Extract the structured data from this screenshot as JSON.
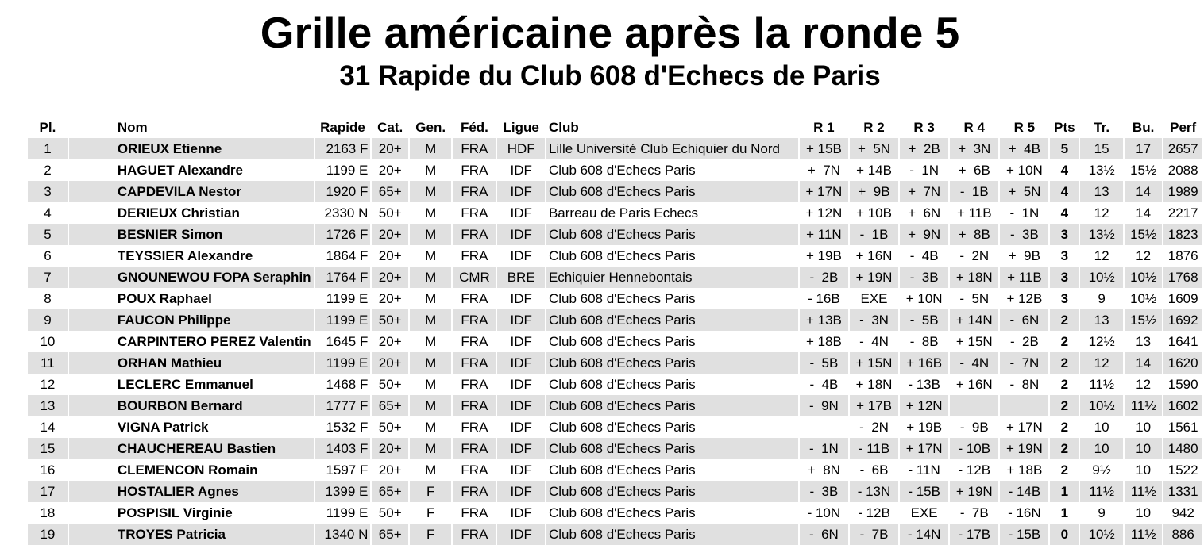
{
  "title": "Grille américaine après la ronde 5",
  "subtitle": "31 Rapide du Club 608 d'Echecs de Paris",
  "columns": [
    "Pl.",
    "Nom",
    "Rapide",
    "Cat.",
    "Gen.",
    "Féd.",
    "Ligue",
    "Club",
    "R 1",
    "R 2",
    "R 3",
    "R 4",
    "R 5",
    "Pts",
    "Tr.",
    "Bu.",
    "Perf"
  ],
  "rows": [
    [
      "1",
      "ORIEUX Etienne",
      "2163 F",
      "20+",
      "M",
      "FRA",
      "HDF",
      "Lille Université Club Echiquier du Nord",
      "+ 15B",
      "+  5N",
      "+  2B",
      "+  3N",
      "+  4B",
      "5",
      "15",
      "17",
      "2657"
    ],
    [
      "2",
      "HAGUET Alexandre",
      "1199 E",
      "20+",
      "M",
      "FRA",
      "IDF",
      "Club 608 d'Echecs Paris",
      "+  7N",
      "+ 14B",
      "-  1N",
      "+  6B",
      "+ 10N",
      "4",
      "13½",
      "15½",
      "2088"
    ],
    [
      "3",
      "CAPDEVILA Nestor",
      "1920 F",
      "65+",
      "M",
      "FRA",
      "IDF",
      "Club 608 d'Echecs Paris",
      "+ 17N",
      "+  9B",
      "+  7N",
      "-  1B",
      "+  5N",
      "4",
      "13",
      "14",
      "1989"
    ],
    [
      "4",
      "DERIEUX Christian",
      "2330 N",
      "50+",
      "M",
      "FRA",
      "IDF",
      "Barreau de Paris Echecs",
      "+ 12N",
      "+ 10B",
      "+  6N",
      "+ 11B",
      "-  1N",
      "4",
      "12",
      "14",
      "2217"
    ],
    [
      "5",
      "BESNIER Simon",
      "1726 F",
      "20+",
      "M",
      "FRA",
      "IDF",
      "Club 608 d'Echecs Paris",
      "+ 11N",
      "-  1B",
      "+  9N",
      "+  8B",
      "-  3B",
      "3",
      "13½",
      "15½",
      "1823"
    ],
    [
      "6",
      "TEYSSIER Alexandre",
      "1864 F",
      "20+",
      "M",
      "FRA",
      "IDF",
      "Club 608 d'Echecs Paris",
      "+ 19B",
      "+ 16N",
      "-  4B",
      "-  2N",
      "+  9B",
      "3",
      "12",
      "12",
      "1876"
    ],
    [
      "7",
      "GNOUNEWOU FOPA Seraphin",
      "1764 F",
      "20+",
      "M",
      "CMR",
      "BRE",
      "Echiquier Hennebontais",
      "-  2B",
      "+ 19N",
      "-  3B",
      "+ 18N",
      "+ 11B",
      "3",
      "10½",
      "10½",
      "1768"
    ],
    [
      "8",
      "POUX Raphael",
      "1199 E",
      "20+",
      "M",
      "FRA",
      "IDF",
      "Club 608 d'Echecs Paris",
      "- 16B",
      "EXE",
      "+ 10N",
      "-  5N",
      "+ 12B",
      "3",
      "9",
      "10½",
      "1609"
    ],
    [
      "9",
      "FAUCON Philippe",
      "1199 E",
      "50+",
      "M",
      "FRA",
      "IDF",
      "Club 608 d'Echecs Paris",
      "+ 13B",
      "-  3N",
      "-  5B",
      "+ 14N",
      "-  6N",
      "2",
      "13",
      "15½",
      "1692"
    ],
    [
      "10",
      "CARPINTERO PEREZ Valentin",
      "1645 F",
      "20+",
      "M",
      "FRA",
      "IDF",
      "Club 608 d'Echecs Paris",
      "+ 18B",
      "-  4N",
      "-  8B",
      "+ 15N",
      "-  2B",
      "2",
      "12½",
      "13",
      "1641"
    ],
    [
      "11",
      "ORHAN Mathieu",
      "1199 E",
      "20+",
      "M",
      "FRA",
      "IDF",
      "Club 608 d'Echecs Paris",
      "-  5B",
      "+ 15N",
      "+ 16B",
      "-  4N",
      "-  7N",
      "2",
      "12",
      "14",
      "1620"
    ],
    [
      "12",
      "LECLERC Emmanuel",
      "1468 F",
      "50+",
      "M",
      "FRA",
      "IDF",
      "Club 608 d'Echecs Paris",
      "-  4B",
      "+ 18N",
      "- 13B",
      "+ 16N",
      "-  8N",
      "2",
      "11½",
      "12",
      "1590"
    ],
    [
      "13",
      "BOURBON Bernard",
      "1777 F",
      "65+",
      "M",
      "FRA",
      "IDF",
      "Club 608 d'Echecs Paris",
      "-  9N",
      "+ 17B",
      "+ 12N",
      "",
      "",
      "2",
      "10½",
      "11½",
      "1602"
    ],
    [
      "14",
      "VIGNA Patrick",
      "1532 F",
      "50+",
      "M",
      "FRA",
      "IDF",
      "Club 608 d'Echecs Paris",
      "",
      "-  2N",
      "+ 19B",
      "-  9B",
      "+ 17N",
      "2",
      "10",
      "10",
      "1561"
    ],
    [
      "15",
      "CHAUCHEREAU Bastien",
      "1403 F",
      "20+",
      "M",
      "FRA",
      "IDF",
      "Club 608 d'Echecs Paris",
      "-  1N",
      "- 11B",
      "+ 17N",
      "- 10B",
      "+ 19N",
      "2",
      "10",
      "10",
      "1480"
    ],
    [
      "16",
      "CLEMENCON Romain",
      "1597 F",
      "20+",
      "M",
      "FRA",
      "IDF",
      "Club 608 d'Echecs Paris",
      "+  8N",
      "-  6B",
      "- 11N",
      "- 12B",
      "+ 18B",
      "2",
      "9½",
      "10",
      "1522"
    ],
    [
      "17",
      "HOSTALIER Agnes",
      "1399 E",
      "65+",
      "F",
      "FRA",
      "IDF",
      "Club 608 d'Echecs Paris",
      "-  3B",
      "- 13N",
      "- 15B",
      "+ 19N",
      "- 14B",
      "1",
      "11½",
      "11½",
      "1331"
    ],
    [
      "18",
      "POSPISIL Virginie",
      "1199 E",
      "50+",
      "F",
      "FRA",
      "IDF",
      "Club 608 d'Echecs Paris",
      "- 10N",
      "- 12B",
      "EXE",
      "-  7B",
      "- 16N",
      "1",
      "9",
      "10",
      "942"
    ],
    [
      "19",
      "TROYES Patricia",
      "1340 N",
      "65+",
      "F",
      "FRA",
      "IDF",
      "Club 608 d'Echecs Paris",
      "-  6N",
      "-  7B",
      "- 14N",
      "- 17B",
      "- 15B",
      "0",
      "10½",
      "11½",
      "886"
    ]
  ],
  "colors": {
    "stripe": "#e0e0e0"
  }
}
